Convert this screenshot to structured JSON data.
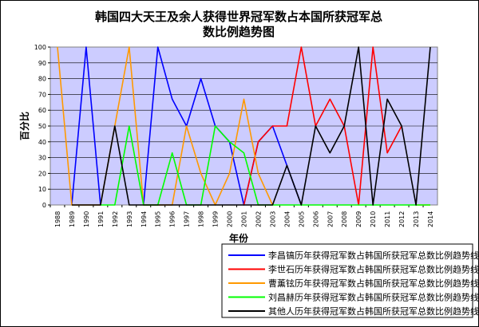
{
  "chart_data": {
    "type": "line",
    "title": [
      "韩国四大天王及余人获得世界冠军数占本国所获冠军总",
      "数比例趋势图"
    ],
    "xlabel": "年份",
    "ylabel": "百分比",
    "ylim": [
      0,
      100
    ],
    "yticks": [
      0,
      10,
      20,
      30,
      40,
      50,
      60,
      70,
      80,
      90,
      100
    ],
    "categories": [
      "1988",
      "1989",
      "1990",
      "1991",
      "1992",
      "1993",
      "1994",
      "1995",
      "1996",
      "1997",
      "1998",
      "1999",
      "2000",
      "2001",
      "2002",
      "2003",
      "2004",
      "2005",
      "2006",
      "2007",
      "2008",
      "2009",
      "2010",
      "2011",
      "2012",
      "2013",
      "2014"
    ],
    "plot_background": "#ccccff",
    "gridlines": "horizontal",
    "series": [
      {
        "name": "李昌镐历年获得冠军数占韩国所获冠军总数比例趋势线",
        "color": "#0000ff",
        "values": [
          null,
          0,
          100,
          0,
          null,
          null,
          0,
          100,
          67,
          50,
          80,
          50,
          40,
          0,
          40,
          50,
          25,
          0,
          null,
          null,
          null,
          null,
          null,
          null,
          null,
          null,
          null
        ]
      },
      {
        "name": "李世石历年获得冠军数占韩国所获冠军总数比例趋势线",
        "color": "#ff0000",
        "values": [
          null,
          null,
          null,
          null,
          null,
          null,
          null,
          null,
          null,
          null,
          null,
          null,
          null,
          0,
          40,
          50,
          50,
          100,
          50,
          67,
          50,
          0,
          100,
          33,
          50,
          null,
          null
        ]
      },
      {
        "name": "曹薰铉历年获得冠军数占韩国所获冠军总数比例趋势线",
        "color": "#ff9900",
        "values": [
          100,
          0,
          0,
          0,
          50,
          100,
          0,
          0,
          0,
          50,
          20,
          0,
          20,
          67,
          20,
          0,
          null,
          null,
          null,
          null,
          null,
          null,
          null,
          null,
          null,
          0,
          0
        ]
      },
      {
        "name": "刘昌赫历年获得冠军数占韩国所获冠军总数比例趋势线",
        "color": "#00ff00",
        "values": [
          null,
          null,
          null,
          0,
          0,
          50,
          0,
          0,
          33,
          0,
          0,
          50,
          40,
          33,
          0,
          0,
          0,
          0,
          0,
          0,
          0,
          0,
          0,
          0,
          0,
          0,
          0
        ]
      },
      {
        "name": "其他人历年获得冠军数占韩国所获冠军总数比例趋势线",
        "color": "#000000",
        "values": [
          null,
          0,
          0,
          0,
          50,
          0,
          0,
          0,
          0,
          0,
          0,
          0,
          0,
          0,
          0,
          0,
          25,
          0,
          50,
          33,
          50,
          100,
          0,
          67,
          50,
          0,
          100
        ]
      }
    ]
  }
}
